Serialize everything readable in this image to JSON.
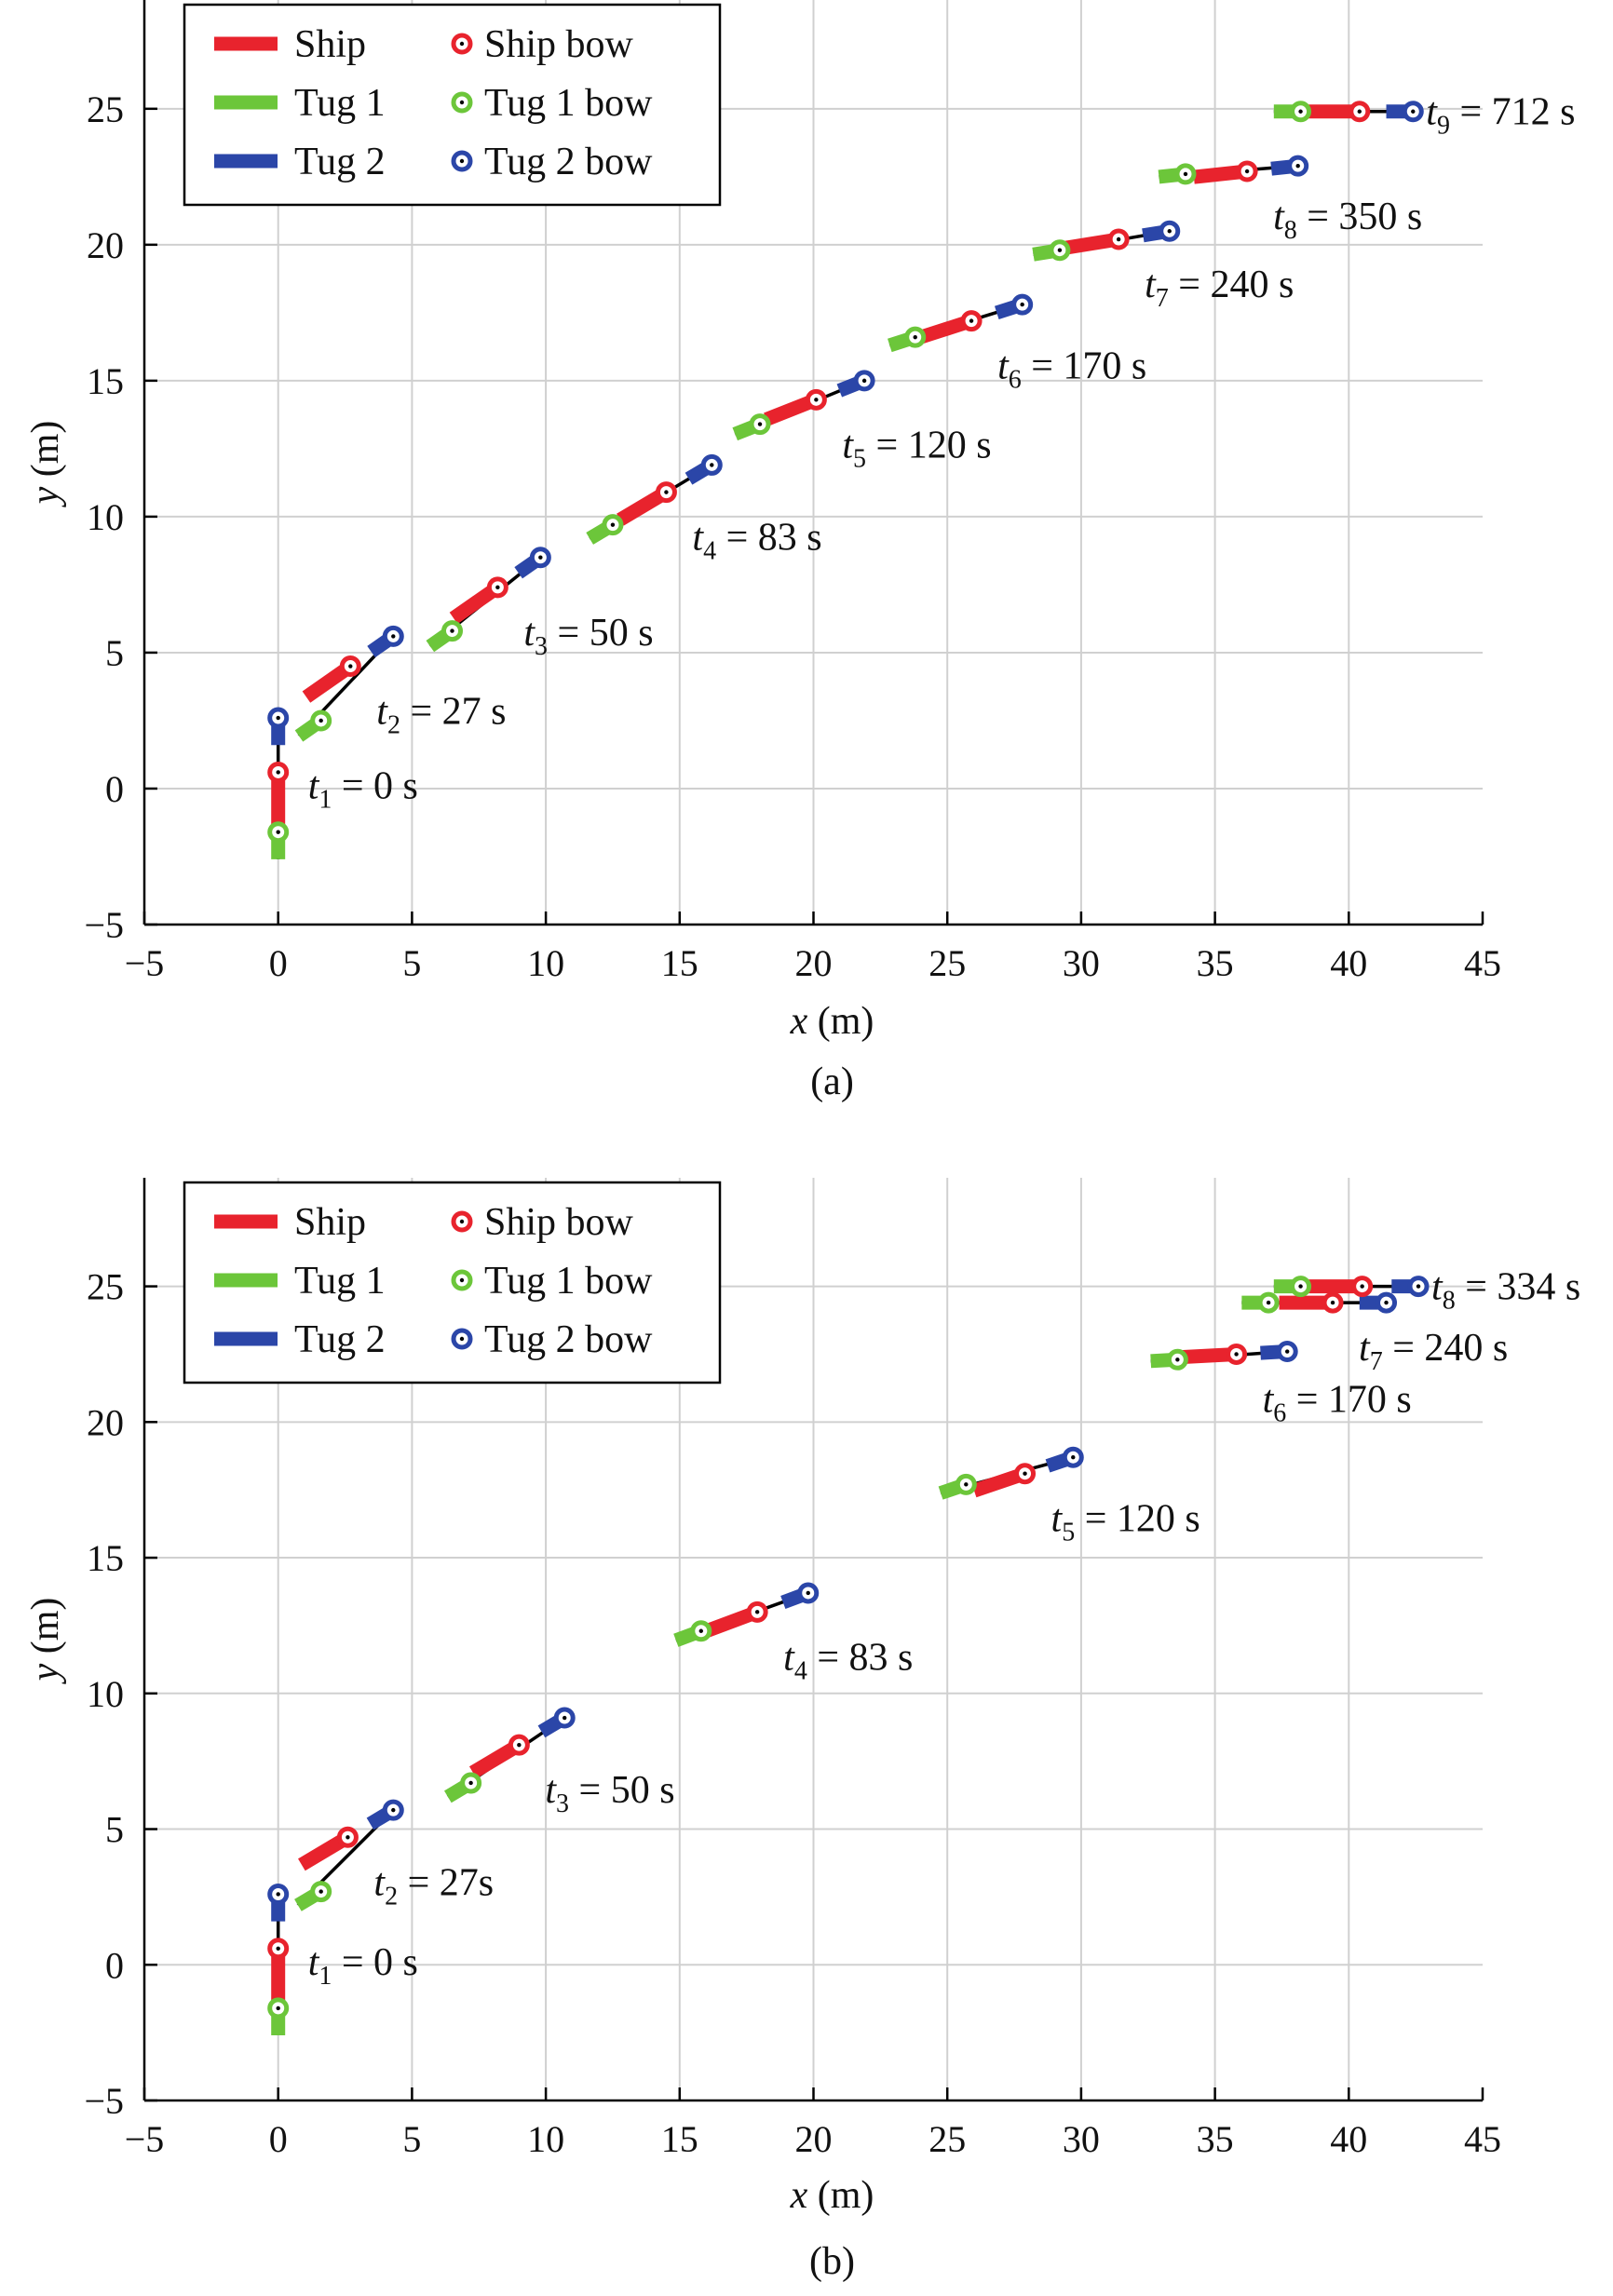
{
  "legend_labels": {
    "ship": "Ship",
    "tug1": "Tug 1",
    "tug2": "Tug 2",
    "ship_bow": "Ship bow",
    "tug1_bow": "Tug 1 bow",
    "tug2_bow": "Tug 2 bow"
  },
  "colors": {
    "ship": "#e8232d",
    "tug1": "#6cc63a",
    "tug2": "#2b46a8",
    "towline": "#000000",
    "grid": "#d0d0d0"
  },
  "vessel_lengths_m": {
    "ship": 2.0,
    "tug": 1.0
  },
  "chart_data": [
    {
      "type": "line",
      "panel": "(a)",
      "xlabel": "x (m)",
      "ylabel": "y (m)",
      "xlim": [
        -5,
        45
      ],
      "ylim": [
        -5,
        29
      ],
      "x_ticks": [
        -5,
        0,
        5,
        10,
        15,
        20,
        25,
        30,
        35,
        40,
        45
      ],
      "y_ticks": [
        -5,
        0,
        5,
        10,
        15,
        20,
        25
      ],
      "grid": true,
      "legend_position": "top-left",
      "snapshots": [
        {
          "sub": "1",
          "value": "0",
          "tug1_bow": [
            0.0,
            -1.6
          ],
          "ship_bow": [
            0.0,
            0.6
          ],
          "tug2_bow": [
            0.0,
            2.6
          ]
        },
        {
          "sub": "2",
          "value": "27",
          "tug1_bow": [
            1.6,
            2.5
          ],
          "ship_bow": [
            2.7,
            4.5
          ],
          "tug2_bow": [
            4.3,
            5.6
          ]
        },
        {
          "sub": "3",
          "value": "50",
          "tug1_bow": [
            6.5,
            5.8
          ],
          "ship_bow": [
            8.2,
            7.4
          ],
          "tug2_bow": [
            9.8,
            8.5
          ]
        },
        {
          "sub": "4",
          "value": "83",
          "tug1_bow": [
            12.5,
            9.7
          ],
          "ship_bow": [
            14.5,
            10.9
          ],
          "tug2_bow": [
            16.2,
            11.9
          ]
        },
        {
          "sub": "5",
          "value": "120",
          "tug1_bow": [
            18.0,
            13.4
          ],
          "ship_bow": [
            20.1,
            14.3
          ],
          "tug2_bow": [
            21.9,
            15.0
          ]
        },
        {
          "sub": "6",
          "value": "170",
          "tug1_bow": [
            23.8,
            16.6
          ],
          "ship_bow": [
            25.9,
            17.2
          ],
          "tug2_bow": [
            27.8,
            17.8
          ]
        },
        {
          "sub": "7",
          "value": "240",
          "tug1_bow": [
            29.2,
            19.8
          ],
          "ship_bow": [
            31.4,
            20.2
          ],
          "tug2_bow": [
            33.3,
            20.5
          ]
        },
        {
          "sub": "8",
          "value": "350",
          "tug1_bow": [
            33.9,
            22.6
          ],
          "ship_bow": [
            36.2,
            22.7
          ],
          "tug2_bow": [
            38.1,
            22.9
          ]
        },
        {
          "sub": "9",
          "value": "712",
          "tug1_bow": [
            38.2,
            24.9
          ],
          "ship_bow": [
            40.4,
            24.9
          ],
          "tug2_bow": [
            42.4,
            24.9
          ]
        }
      ]
    },
    {
      "type": "line",
      "panel": "(b)",
      "xlabel": "x (m)",
      "ylabel": "y (m)",
      "xlim": [
        -5,
        45
      ],
      "ylim": [
        -5,
        29
      ],
      "x_ticks": [
        -5,
        0,
        5,
        10,
        15,
        20,
        25,
        30,
        35,
        40,
        45
      ],
      "y_ticks": [
        -5,
        0,
        5,
        10,
        15,
        20,
        25
      ],
      "grid": true,
      "legend_position": "top-left",
      "snapshots": [
        {
          "sub": "1",
          "value": "0",
          "tug1_bow": [
            0.0,
            -1.6
          ],
          "ship_bow": [
            0.0,
            0.6
          ],
          "tug2_bow": [
            0.0,
            2.6
          ]
        },
        {
          "sub": "2",
          "value": "27",
          "tug1_bow": [
            1.6,
            2.7
          ],
          "ship_bow": [
            2.6,
            4.7
          ],
          "tug2_bow": [
            4.3,
            5.7
          ]
        },
        {
          "sub": "3",
          "value": "50",
          "tug1_bow": [
            7.2,
            6.7
          ],
          "ship_bow": [
            9.0,
            8.1
          ],
          "tug2_bow": [
            10.7,
            9.1
          ]
        },
        {
          "sub": "4",
          "value": "83",
          "tug1_bow": [
            15.8,
            12.3
          ],
          "ship_bow": [
            17.9,
            13.0
          ],
          "tug2_bow": [
            19.8,
            13.7
          ]
        },
        {
          "sub": "5",
          "value": "120",
          "tug1_bow": [
            25.7,
            17.7
          ],
          "ship_bow": [
            27.9,
            18.1
          ],
          "tug2_bow": [
            29.7,
            18.7
          ]
        },
        {
          "sub": "6",
          "value": "170",
          "tug1_bow": [
            33.6,
            22.3
          ],
          "ship_bow": [
            35.8,
            22.5
          ],
          "tug2_bow": [
            37.7,
            22.6
          ]
        },
        {
          "sub": "7",
          "value": "240",
          "tug1_bow": [
            37.0,
            24.4
          ],
          "ship_bow": [
            39.4,
            24.4
          ],
          "tug2_bow": [
            41.4,
            24.4
          ]
        },
        {
          "sub": "8",
          "value": "334",
          "tug1_bow": [
            38.2,
            25.0
          ],
          "ship_bow": [
            40.5,
            25.0
          ],
          "tug2_bow": [
            42.6,
            25.0
          ]
        }
      ]
    }
  ]
}
